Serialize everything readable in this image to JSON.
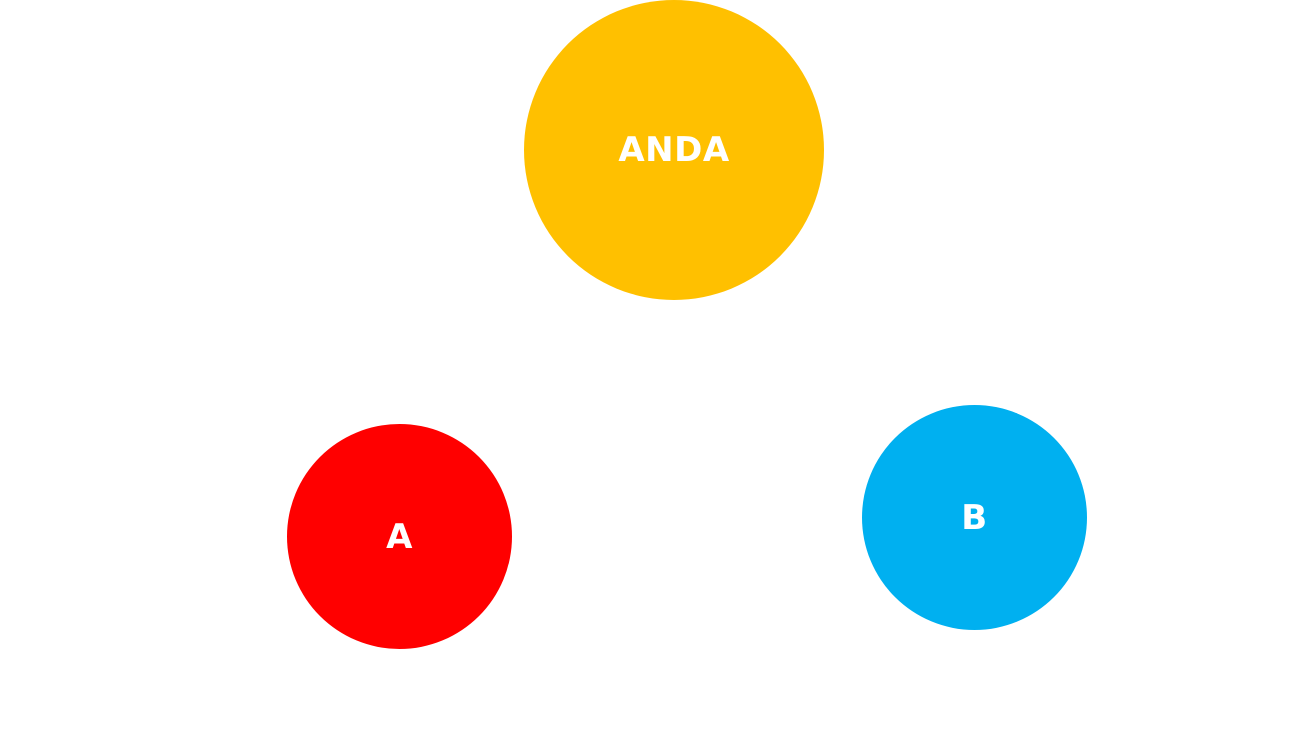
{
  "nodes": {
    "anda": {
      "label": "ANDA",
      "color": "#FFC000"
    },
    "a": {
      "label": "A",
      "color": "#FF0000"
    },
    "b": {
      "label": "B",
      "color": "#00B0F0"
    }
  },
  "text_color": "#FFFFFF"
}
